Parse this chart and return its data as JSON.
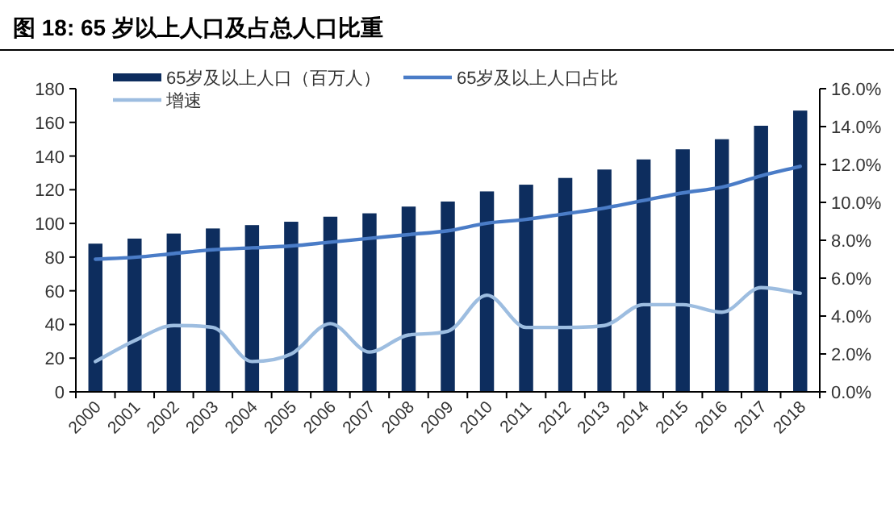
{
  "chart_data": {
    "type": "bar",
    "title": "图 18: 65 岁以上人口及占总人口比重",
    "categories": [
      "2000",
      "2001",
      "2002",
      "2003",
      "2004",
      "2005",
      "2006",
      "2007",
      "2008",
      "2009",
      "2010",
      "2011",
      "2012",
      "2013",
      "2014",
      "2015",
      "2016",
      "2017",
      "2018"
    ],
    "series": [
      {
        "name": "65岁及以上人口（百万人）",
        "color": "#0d2d5e",
        "values": [
          88,
          91,
          94,
          97,
          99,
          101,
          104,
          106,
          110,
          113,
          119,
          123,
          127,
          132,
          138,
          144,
          150,
          158,
          167
        ]
      },
      {
        "name": "65岁及以上人口占比",
        "type": "line",
        "axis": "y2",
        "color": "#4a7cc7",
        "values": [
          7.0,
          7.1,
          7.3,
          7.5,
          7.6,
          7.7,
          7.9,
          8.1,
          8.3,
          8.5,
          8.9,
          9.1,
          9.4,
          9.7,
          10.1,
          10.5,
          10.8,
          11.4,
          11.9
        ]
      },
      {
        "name": "增速",
        "type": "line",
        "axis": "y2",
        "color": "#9dbde0",
        "values": [
          1.6,
          2.7,
          3.5,
          3.4,
          1.6,
          2.0,
          3.6,
          2.1,
          3.0,
          3.2,
          5.1,
          3.4,
          3.4,
          3.5,
          4.6,
          4.6,
          4.2,
          5.5,
          5.2
        ]
      }
    ],
    "ylim": [
      0,
      180
    ],
    "yticks": [
      0,
      20,
      40,
      60,
      80,
      100,
      120,
      140,
      160,
      180
    ],
    "y2lim": [
      0,
      16
    ],
    "y2ticks": [
      {
        "value": 0,
        "label": "0.0%"
      },
      {
        "value": 2,
        "label": "2.0%"
      },
      {
        "value": 4,
        "label": "4.0%"
      },
      {
        "value": 6,
        "label": "6.0%"
      },
      {
        "value": 8,
        "label": "8.0%"
      },
      {
        "value": 10,
        "label": "10.0%"
      },
      {
        "value": 12,
        "label": "12.0%"
      },
      {
        "value": 14,
        "label": "14.0%"
      },
      {
        "value": 16,
        "label": "16.0%"
      }
    ],
    "legend": "top",
    "grid": false
  }
}
